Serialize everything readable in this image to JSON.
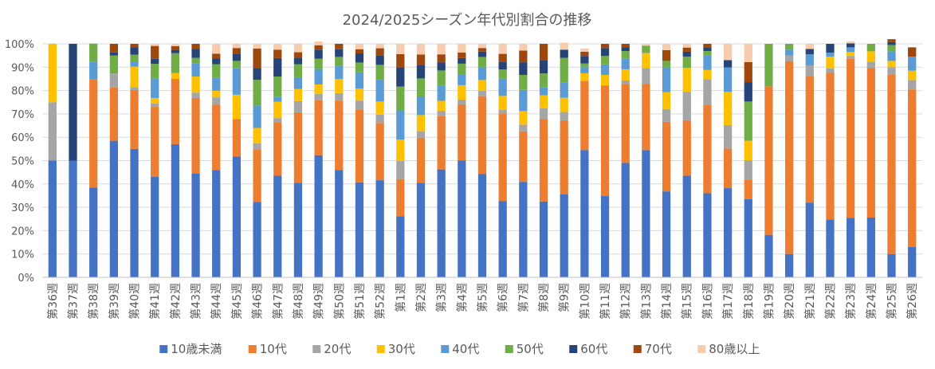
{
  "chart_data": {
    "type": "bar",
    "stacked": true,
    "title": "2024/2025シーズン年代別割合の推移",
    "xlabel": "",
    "ylabel": "",
    "ylim": [
      0,
      100
    ],
    "ytick_values": [
      0,
      10,
      20,
      30,
      40,
      50,
      60,
      70,
      80,
      90,
      100
    ],
    "ytick_labels": [
      "0%",
      "10%",
      "20%",
      "30%",
      "40%",
      "50%",
      "60%",
      "70%",
      "80%",
      "90%",
      "100%"
    ],
    "grid": true,
    "legend_position": "bottom",
    "categories": [
      "第36週",
      "第37週",
      "第38週",
      "第39週",
      "第40週",
      "第41週",
      "第42週",
      "第43週",
      "第44週",
      "第45週",
      "第46週",
      "第47週",
      "第48週",
      "第49週",
      "第50週",
      "第51週",
      "第52週",
      "第1週",
      "第2週",
      "第3週",
      "第4週",
      "第5週",
      "第6週",
      "第7週",
      "第8週",
      "第9週",
      "第10週",
      "第11週",
      "第12週",
      "第13週",
      "第14週",
      "第15週",
      "第16週",
      "第17週",
      "第18週",
      "第19週",
      "第20週",
      "第21週",
      "第22週",
      "第23週",
      "第24週",
      "第25週",
      "第26週"
    ],
    "series": [
      {
        "name": "10歳未満",
        "color": "#4472C4",
        "values": [
          50,
          50,
          38.5,
          58.5,
          55,
          43,
          57,
          44.5,
          46,
          51.7,
          32.3,
          43.5,
          40.5,
          52.3,
          46,
          40.7,
          41.6,
          26.2,
          40.5,
          46.2,
          50,
          44.2,
          32.6,
          40.9,
          32.5,
          35.5,
          54.5,
          34.8,
          49,
          54.5,
          36.8,
          43.5,
          36,
          38.2,
          33.5,
          18.2,
          10,
          32,
          24.8,
          25.5,
          25.6,
          10,
          13
        ]
      },
      {
        "name": "10代",
        "color": "#ED7D31",
        "values": [
          0,
          0,
          46.2,
          22.8,
          25.2,
          30,
          28,
          32.3,
          27.9,
          16.1,
          22.3,
          22.9,
          30.2,
          23.5,
          29.7,
          31.2,
          24.5,
          15.9,
          19.2,
          22.8,
          24.1,
          33.4,
          37.6,
          21.6,
          35.4,
          31.8,
          29.6,
          47.4,
          33.8,
          28.4,
          29.8,
          23.8,
          37.7,
          16.9,
          8.4,
          63.6,
          82.5,
          54.3,
          62.9,
          68.1,
          64,
          76.7,
          67.5
        ]
      },
      {
        "name": "20代",
        "color": "#A5A5A5",
        "values": [
          25,
          0,
          0,
          6,
          1.3,
          1.5,
          0,
          2.3,
          3.2,
          0,
          2.8,
          1.8,
          4.8,
          2.8,
          3.2,
          3.8,
          3.6,
          7.8,
          2.9,
          2.3,
          2,
          2.3,
          1.6,
          2.9,
          4.5,
          3.5,
          0,
          0,
          1.5,
          6.8,
          5.5,
          12.2,
          11.1,
          10.1,
          8.2,
          0,
          2.5,
          4.5,
          1.8,
          1.2,
          2.8,
          3.3,
          4
        ]
      },
      {
        "name": "30代",
        "color": "#FFC000",
        "values": [
          25,
          0,
          0,
          0,
          8.7,
          2.3,
          2.5,
          6.9,
          2.8,
          10.4,
          6.6,
          7,
          5.2,
          4,
          6,
          5.1,
          5.6,
          9.1,
          6.9,
          4.3,
          6.2,
          4.6,
          5.9,
          5.8,
          5.6,
          6.1,
          3.3,
          4.5,
          4.8,
          6.4,
          7.2,
          10.2,
          4,
          14.2,
          8.4,
          0,
          0,
          0,
          5,
          1.7,
          4.4,
          2.7,
          4
        ]
      },
      {
        "name": "40代",
        "color": "#5B9BD5",
        "values": [
          0,
          0,
          7.7,
          0,
          2.1,
          8.4,
          0,
          5.5,
          5.7,
          11.3,
          9.6,
          2.2,
          5,
          6.6,
          5.7,
          7,
          9.3,
          12.5,
          7.8,
          6.6,
          4.6,
          5.4,
          7.4,
          9.1,
          3.5,
          6.6,
          2.6,
          4.5,
          4.5,
          0.5,
          10.6,
          0,
          6.2,
          10.5,
          0,
          0,
          2.5,
          4.7,
          1.7,
          2,
          0,
          4.1,
          6
        ]
      },
      {
        "name": "50代",
        "color": "#70AD47",
        "values": [
          0,
          0,
          7.7,
          7.7,
          3.1,
          6.2,
          8.5,
          2.5,
          5.7,
          3.2,
          11,
          8.6,
          5.6,
          4.4,
          3.8,
          4.2,
          6.4,
          10.2,
          7.9,
          6.4,
          4.6,
          4.5,
          3.9,
          6.4,
          5.8,
          10.5,
          1.6,
          3.6,
          3.3,
          2.6,
          2.8,
          4.8,
          1.9,
          0,
          16.8,
          18.2,
          2.5,
          0,
          0,
          0,
          3.2,
          2.7,
          0
        ]
      },
      {
        "name": "60代",
        "color": "#264478",
        "values": [
          0,
          50,
          0,
          1.3,
          3.2,
          2.2,
          1.4,
          3.8,
          2.4,
          3,
          5.1,
          7.9,
          2.7,
          3.9,
          3.3,
          3.9,
          3.9,
          8.2,
          5.6,
          3.4,
          2.4,
          2.3,
          3.4,
          5.4,
          5.8,
          3.5,
          3.2,
          3.4,
          1.7,
          0,
          0,
          2.1,
          1.6,
          3.1,
          8.3,
          0,
          0,
          2.3,
          3.8,
          1.7,
          0,
          1.3,
          0
        ]
      },
      {
        "name": "70代",
        "color": "#9E480E",
        "values": [
          0,
          0,
          0,
          3.7,
          1.4,
          5.5,
          1.6,
          2.2,
          2.1,
          2.5,
          8.3,
          3.6,
          2.4,
          1.9,
          2.3,
          1.8,
          3.2,
          5.7,
          4.6,
          3.5,
          2.4,
          1.5,
          3.3,
          5,
          6.9,
          0,
          1.8,
          1.8,
          1.4,
          0,
          4.6,
          1.8,
          1.5,
          0,
          8.6,
          0,
          0,
          0,
          0,
          0,
          0,
          1.2,
          4
        ]
      },
      {
        "name": "80歳以上",
        "color": "#F8CBAD",
        "values": [
          0,
          0,
          0,
          0,
          0,
          0.9,
          1,
          0,
          4.2,
          1.8,
          2,
          2.5,
          3.6,
          1.6,
          0,
          2.3,
          1.9,
          4.4,
          4.6,
          4.5,
          3.7,
          1.8,
          4.3,
          2.9,
          0,
          3,
          1.4,
          0,
          0,
          0.8,
          2.7,
          1.6,
          0,
          7,
          7.8,
          0,
          0,
          2.2,
          0,
          0.8,
          0,
          0,
          0
        ]
      }
    ]
  }
}
